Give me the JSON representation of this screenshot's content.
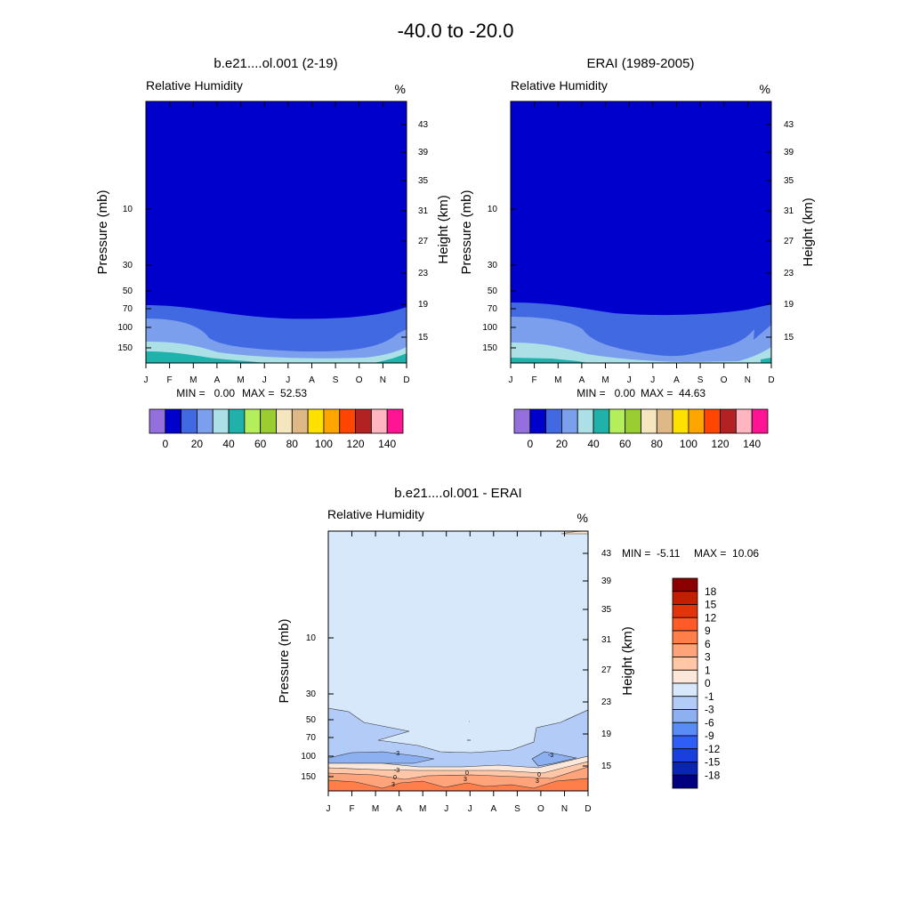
{
  "page_title": "-40.0 to -20.0",
  "chart_data": [
    {
      "type": "heatmap",
      "title": "b.e21....ol.001 (2-19)",
      "variable_label": "Relative Humidity",
      "units_label": "%",
      "ylabel": "Pressure (mb)",
      "ylabel_right": "Height (km)",
      "x_ticks": [
        "J",
        "F",
        "M",
        "A",
        "M",
        "J",
        "J",
        "A",
        "S",
        "O",
        "N",
        "D"
      ],
      "y_ticks": [
        "10",
        "30",
        "50",
        "70",
        "100",
        "150"
      ],
      "height_ticks": [
        "43",
        "39",
        "35",
        "31",
        "27",
        "23",
        "19",
        "15"
      ],
      "min_label": "MIN =   0.00",
      "max_label": "MAX =  52.53",
      "colorbar_levels": [
        0,
        10,
        20,
        30,
        40,
        50,
        60,
        70,
        80,
        90,
        100,
        110,
        120,
        130,
        140
      ],
      "colorbar_labels": [
        "0",
        "20",
        "40",
        "60",
        "80",
        "100",
        "120",
        "140"
      ],
      "colorbar_colors": [
        "#9370DB",
        "#0000CD",
        "#4169E1",
        "#7B9EED",
        "#ADDFE6",
        "#20B2AA",
        "#B5EE5C",
        "#9ACD32",
        "#F5E6BF",
        "#DEB887",
        "#FFE100",
        "#FFA500",
        "#FF4500",
        "#B22222",
        "#FFB6C1",
        "#FF1493"
      ]
    },
    {
      "type": "heatmap",
      "title": "ERAI (1989-2005)",
      "variable_label": "Relative Humidity",
      "units_label": "%",
      "ylabel": "Pressure (mb)",
      "ylabel_right": "Height (km)",
      "x_ticks": [
        "J",
        "F",
        "M",
        "A",
        "M",
        "J",
        "J",
        "A",
        "S",
        "O",
        "N",
        "D"
      ],
      "y_ticks": [
        "10",
        "30",
        "50",
        "70",
        "100",
        "150"
      ],
      "height_ticks": [
        "43",
        "39",
        "35",
        "31",
        "27",
        "23",
        "19",
        "15"
      ],
      "min_label": "MIN =   0.00",
      "max_label": "MAX =  44.63",
      "colorbar_levels": [
        0,
        10,
        20,
        30,
        40,
        50,
        60,
        70,
        80,
        90,
        100,
        110,
        120,
        130,
        140
      ],
      "colorbar_labels": [
        "0",
        "20",
        "40",
        "60",
        "80",
        "100",
        "120",
        "140"
      ],
      "colorbar_colors": [
        "#9370DB",
        "#0000CD",
        "#4169E1",
        "#7B9EED",
        "#ADDFE6",
        "#20B2AA",
        "#B5EE5C",
        "#9ACD32",
        "#F5E6BF",
        "#DEB887",
        "#FFE100",
        "#FFA500",
        "#FF4500",
        "#B22222",
        "#FFB6C1",
        "#FF1493"
      ]
    },
    {
      "type": "heatmap",
      "title": "b.e21....ol.001 - ERAI",
      "variable_label": "Relative Humidity",
      "units_label": "%",
      "ylabel": "Pressure (mb)",
      "ylabel_right": "Height (km)",
      "x_ticks": [
        "J",
        "F",
        "M",
        "A",
        "M",
        "J",
        "J",
        "A",
        "S",
        "O",
        "N",
        "D"
      ],
      "y_ticks": [
        "10",
        "30",
        "50",
        "70",
        "100",
        "150"
      ],
      "height_ticks": [
        "43",
        "39",
        "35",
        "31",
        "27",
        "23",
        "19",
        "15"
      ],
      "min_label": "MIN =  -5.11",
      "max_label": "MAX =  10.06",
      "contour_labels": [
        "-3",
        "-3",
        "0",
        "3",
        "-3",
        "0",
        "3",
        "0",
        "3"
      ],
      "colorbar_labels": [
        "18",
        "15",
        "12",
        "9",
        "6",
        "3",
        "1",
        "0",
        "-1",
        "-3",
        "-6",
        "-9",
        "-12",
        "-15",
        "-18"
      ],
      "colorbar_colors": [
        "#8B0000",
        "#C41E00",
        "#E0340B",
        "#FF5A2A",
        "#FF7E4A",
        "#FFA37A",
        "#FFC7A8",
        "#FCE8DA",
        "#D6E8FA",
        "#B3CCF7",
        "#8CB0F0",
        "#5A8CF5",
        "#2E5EF5",
        "#1A3FDC",
        "#0A24B4",
        "#000080"
      ]
    }
  ]
}
